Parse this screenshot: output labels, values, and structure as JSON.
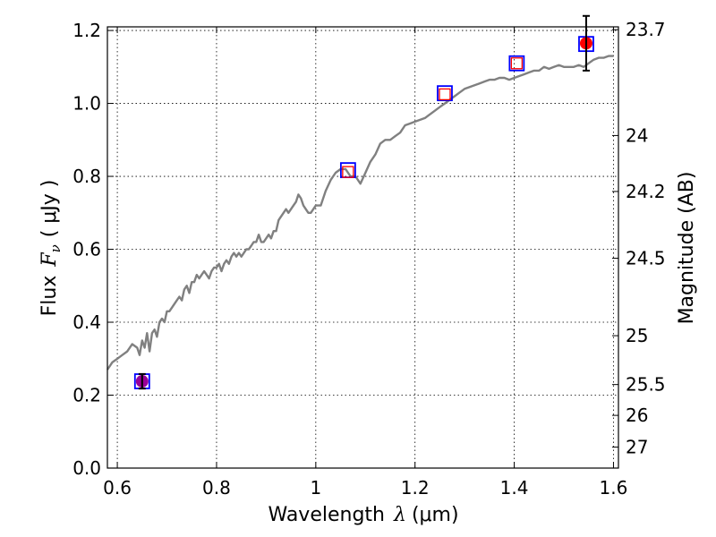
{
  "chart_data": {
    "type": "line",
    "xlabel_prefix": "Wavelength",
    "xlabel_symbol": "λ",
    "xlabel_unit": "(μm)",
    "ylabel_prefix": "Flux",
    "ylabel_symbol": "F",
    "ylabel_subscript": "ν",
    "ylabel_unit": "( μJy )",
    "y2label": "Magnitude (AB)",
    "xlim": [
      0.58,
      1.61
    ],
    "ylim": [
      0.0,
      1.21
    ],
    "grid": true,
    "x_ticks": [
      {
        "value": 0.6,
        "label": "0.6"
      },
      {
        "value": 0.8,
        "label": "0.8"
      },
      {
        "value": 1.0,
        "label": "1"
      },
      {
        "value": 1.2,
        "label": "1.2"
      },
      {
        "value": 1.4,
        "label": "1.4"
      },
      {
        "value": 1.6,
        "label": "1.6"
      }
    ],
    "y_ticks": [
      {
        "value": 0.0,
        "label": "0.0"
      },
      {
        "value": 0.2,
        "label": "0.2"
      },
      {
        "value": 0.4,
        "label": "0.4"
      },
      {
        "value": 0.6,
        "label": "0.6"
      },
      {
        "value": 0.8,
        "label": "0.8"
      },
      {
        "value": 1.0,
        "label": "1.0"
      },
      {
        "value": 1.2,
        "label": "1.2"
      }
    ],
    "y2_ticks": [
      {
        "mag": 23.7,
        "label": "23.7"
      },
      {
        "mag": 24.0,
        "label": "24"
      },
      {
        "mag": 24.2,
        "label": "24.2"
      },
      {
        "mag": 24.5,
        "label": "24.5"
      },
      {
        "mag": 25.0,
        "label": "25"
      },
      {
        "mag": 25.5,
        "label": "25.5"
      },
      {
        "mag": 26.0,
        "label": "26"
      },
      {
        "mag": 27.0,
        "label": "27"
      }
    ],
    "series": [
      {
        "type": "line",
        "color": "#808080",
        "x": [
          0.58,
          0.59,
          0.6,
          0.61,
          0.62,
          0.63,
          0.64,
          0.645,
          0.65,
          0.655,
          0.66,
          0.665,
          0.67,
          0.675,
          0.68,
          0.685,
          0.69,
          0.695,
          0.7,
          0.705,
          0.71,
          0.715,
          0.72,
          0.725,
          0.73,
          0.735,
          0.74,
          0.745,
          0.75,
          0.755,
          0.76,
          0.765,
          0.77,
          0.775,
          0.78,
          0.785,
          0.79,
          0.795,
          0.8,
          0.805,
          0.81,
          0.815,
          0.82,
          0.825,
          0.83,
          0.835,
          0.84,
          0.845,
          0.85,
          0.855,
          0.86,
          0.865,
          0.87,
          0.875,
          0.88,
          0.885,
          0.89,
          0.895,
          0.9,
          0.905,
          0.91,
          0.915,
          0.92,
          0.925,
          0.93,
          0.935,
          0.94,
          0.945,
          0.95,
          0.955,
          0.96,
          0.965,
          0.97,
          0.975,
          0.98,
          0.985,
          0.99,
          0.995,
          1.0,
          1.01,
          1.02,
          1.03,
          1.04,
          1.05,
          1.06,
          1.07,
          1.08,
          1.09,
          1.1,
          1.11,
          1.12,
          1.13,
          1.14,
          1.15,
          1.16,
          1.17,
          1.18,
          1.19,
          1.2,
          1.21,
          1.22,
          1.23,
          1.24,
          1.25,
          1.26,
          1.27,
          1.28,
          1.29,
          1.3,
          1.31,
          1.32,
          1.33,
          1.34,
          1.35,
          1.36,
          1.37,
          1.38,
          1.39,
          1.4,
          1.41,
          1.42,
          1.43,
          1.44,
          1.45,
          1.46,
          1.47,
          1.48,
          1.49,
          1.5,
          1.51,
          1.52,
          1.53,
          1.54,
          1.55,
          1.56,
          1.57,
          1.58,
          1.59,
          1.6
        ],
        "y": [
          0.27,
          0.29,
          0.3,
          0.31,
          0.32,
          0.34,
          0.33,
          0.31,
          0.35,
          0.33,
          0.37,
          0.32,
          0.37,
          0.38,
          0.36,
          0.4,
          0.41,
          0.4,
          0.43,
          0.43,
          0.44,
          0.45,
          0.46,
          0.47,
          0.46,
          0.49,
          0.5,
          0.48,
          0.51,
          0.51,
          0.53,
          0.52,
          0.53,
          0.54,
          0.53,
          0.52,
          0.54,
          0.55,
          0.55,
          0.56,
          0.54,
          0.56,
          0.57,
          0.56,
          0.58,
          0.59,
          0.58,
          0.59,
          0.58,
          0.59,
          0.6,
          0.6,
          0.61,
          0.62,
          0.62,
          0.64,
          0.62,
          0.62,
          0.63,
          0.64,
          0.63,
          0.65,
          0.65,
          0.68,
          0.69,
          0.7,
          0.71,
          0.7,
          0.71,
          0.72,
          0.73,
          0.75,
          0.74,
          0.72,
          0.71,
          0.7,
          0.7,
          0.71,
          0.72,
          0.72,
          0.76,
          0.79,
          0.81,
          0.82,
          0.82,
          0.8,
          0.8,
          0.78,
          0.81,
          0.84,
          0.86,
          0.89,
          0.9,
          0.9,
          0.91,
          0.92,
          0.94,
          0.945,
          0.95,
          0.955,
          0.96,
          0.97,
          0.98,
          0.99,
          1.0,
          1.01,
          1.02,
          1.03,
          1.04,
          1.045,
          1.05,
          1.055,
          1.06,
          1.065,
          1.065,
          1.07,
          1.07,
          1.065,
          1.07,
          1.075,
          1.08,
          1.085,
          1.09,
          1.09,
          1.1,
          1.095,
          1.1,
          1.105,
          1.1,
          1.1,
          1.1,
          1.105,
          1.1,
          1.11,
          1.12,
          1.125,
          1.125,
          1.13,
          1.13
        ]
      }
    ],
    "model_points": [
      {
        "x": 0.65,
        "y": 0.238,
        "edge_color": "#0000ff"
      },
      {
        "x": 1.065,
        "y": 0.817,
        "edge_color": "#0000ff"
      },
      {
        "x": 1.26,
        "y": 1.028,
        "edge_color": "#0000ff"
      },
      {
        "x": 1.405,
        "y": 1.11,
        "edge_color": "#0000ff"
      },
      {
        "x": 1.545,
        "y": 1.163,
        "edge_color": "#0000ff"
      }
    ],
    "observed_points": [
      {
        "x": 0.65,
        "y": 0.238,
        "yerr": 0.02,
        "marker": "circle",
        "color": "#990099"
      },
      {
        "x": 1.065,
        "y": 0.812,
        "marker": "open-square",
        "color": "#ff0000"
      },
      {
        "x": 1.26,
        "y": 1.025,
        "marker": "open-square",
        "color": "#ff0000"
      },
      {
        "x": 1.405,
        "y": 1.11,
        "marker": "open-square",
        "color": "#ff0000"
      },
      {
        "x": 1.545,
        "y": 1.165,
        "yerr": 0.075,
        "marker": "circle",
        "color": "#ff0000"
      }
    ]
  }
}
